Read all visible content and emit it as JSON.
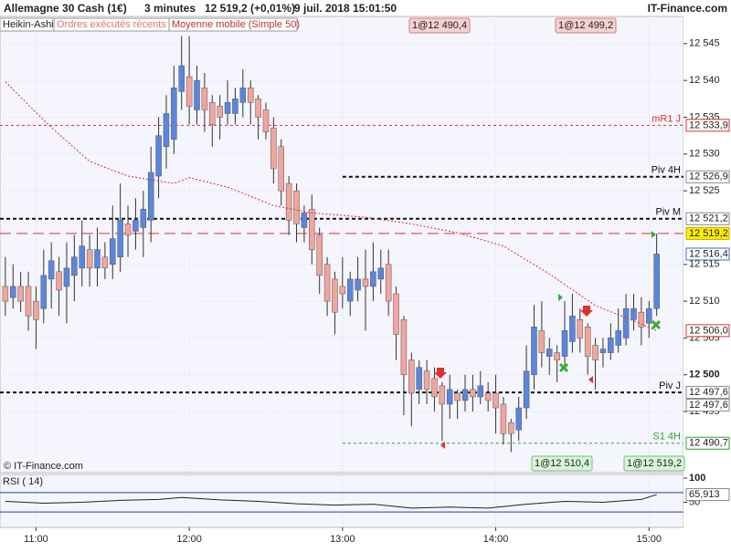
{
  "header": {
    "instrument": "Allemagne 30 Cash (1€)",
    "interval": "3 minutes",
    "quote": "12 519,2 (+0,01%)",
    "datetime": "9 juil. 2018 15:01:50",
    "brand": "IT-Finance.com"
  },
  "tabs": [
    "Heikin-Ashi",
    "Ordres exécutés récents",
    "Moyenne mobile (Simple 50)"
  ],
  "watermark": "© IT-Finance.com",
  "chart_data": {
    "type": "candlestick",
    "colors": {
      "up": "#5b86dc",
      "down": "#f2a59c",
      "ma": "#d03030"
    },
    "ylim": [
      12486.7,
      12548.7
    ],
    "yticks": [
      {
        "value": 12545,
        "label": "12 545"
      },
      {
        "value": 12540,
        "label": "12 540"
      },
      {
        "value": 12535,
        "label": "12 535"
      },
      {
        "value": 12530,
        "label": "12 530"
      },
      {
        "value": 12525,
        "label": "12 525"
      },
      {
        "value": 12515,
        "label": "12 515"
      },
      {
        "value": 12510,
        "label": "12 510"
      },
      {
        "value": 12505,
        "label": "12 505"
      },
      {
        "value": 12500,
        "label": "12 500",
        "bold": true
      },
      {
        "value": 12495,
        "label": "12 495"
      }
    ],
    "xlim": [
      -0.7,
      88.5
    ],
    "xticks": [
      {
        "value": 4,
        "label": "11:00"
      },
      {
        "value": 24,
        "label": "12:00"
      },
      {
        "value": 44,
        "label": "13:00"
      },
      {
        "value": 64,
        "label": "14:00"
      },
      {
        "value": 84,
        "label": "15:00"
      }
    ],
    "candles": [
      [
        12512,
        12516,
        12508,
        12510
      ],
      [
        12510.5,
        12515,
        12509,
        12512
      ],
      [
        12512,
        12514,
        12508.5,
        12510
      ],
      [
        12512,
        12514,
        12506,
        12508
      ],
      [
        12510,
        12512,
        12503.5,
        12507.5
      ],
      [
        12509,
        12517,
        12507,
        12513.5
      ],
      [
        12513,
        12518,
        12509,
        12515.5
      ],
      [
        12514,
        12516,
        12508,
        12511.5
      ],
      [
        12512,
        12518,
        12507,
        12514.5
      ],
      [
        12513.5,
        12519,
        12510,
        12516
      ],
      [
        12514.5,
        12521,
        12512,
        12517.5
      ],
      [
        12517,
        12519,
        12512,
        12514.5
      ],
      [
        12514.5,
        12520,
        12512,
        12517
      ],
      [
        12516,
        12518,
        12513,
        12514.5
      ],
      [
        12515,
        12523,
        12513,
        12518.5
      ],
      [
        12516,
        12526,
        12514,
        12521
      ],
      [
        12520.5,
        12523,
        12516,
        12519
      ],
      [
        12519.5,
        12524,
        12517,
        12521
      ],
      [
        12520,
        12525,
        12516,
        12522.5
      ],
      [
        12521,
        12531,
        12518,
        12527.5
      ],
      [
        12527,
        12535,
        12524,
        12532.5
      ],
      [
        12531,
        12538,
        12528,
        12535.5
      ],
      [
        12532,
        12542,
        12530,
        12539
      ],
      [
        12538.5,
        12546,
        12536,
        12542
      ],
      [
        12540.5,
        12546,
        12534,
        12536.5
      ],
      [
        12536,
        12542,
        12534,
        12540
      ],
      [
        12539,
        12541,
        12533,
        12536
      ],
      [
        12537,
        12538,
        12531,
        12534
      ],
      [
        12536.5,
        12538,
        12532,
        12535
      ],
      [
        12535.5,
        12540,
        12534,
        12537
      ],
      [
        12535.5,
        12539,
        12534,
        12537.5
      ],
      [
        12537,
        12541.5,
        12535,
        12539
      ],
      [
        12539,
        12540,
        12534,
        12537
      ],
      [
        12537.5,
        12538,
        12532,
        12535
      ],
      [
        12536,
        12537,
        12532,
        12533
      ],
      [
        12533.5,
        12535,
        12526,
        12528
      ],
      [
        12531,
        12532,
        12523,
        12525
      ],
      [
        12526,
        12527,
        12519,
        12521
      ],
      [
        12525,
        12526,
        12518,
        12520.5
      ],
      [
        12520,
        12523,
        12518,
        12522
      ],
      [
        12522.5,
        12524.5,
        12515,
        12517
      ],
      [
        12519,
        12520,
        12511,
        12513.5
      ],
      [
        12515,
        12516,
        12508,
        12510
      ],
      [
        12513,
        12514,
        12505.5,
        12508.5
      ],
      [
        12512,
        12516,
        12509,
        12511
      ],
      [
        12510,
        12514,
        12508,
        12513
      ],
      [
        12511.5,
        12516,
        12510,
        12513
      ],
      [
        12513,
        12517,
        12506,
        12512
      ],
      [
        12512,
        12518,
        12510,
        12514
      ],
      [
        12513,
        12517,
        12511,
        12514.5
      ],
      [
        12515,
        12517,
        12508,
        12510
      ],
      [
        12511,
        12512,
        12502,
        12505.5
      ],
      [
        12507.5,
        12508,
        12494.5,
        12500
      ],
      [
        12502,
        12503,
        12493,
        12497.5
      ],
      [
        12498,
        12502,
        12496,
        12501
      ],
      [
        12500.5,
        12502,
        12496,
        12498
      ],
      [
        12499.5,
        12501,
        12495,
        12497
      ],
      [
        12498.5,
        12499,
        12491,
        12496
      ],
      [
        12496,
        12500,
        12494,
        12498
      ],
      [
        12497.5,
        12498,
        12494,
        12496.5
      ],
      [
        12496.5,
        12500,
        12495,
        12498
      ],
      [
        12498,
        12500,
        12495,
        12497
      ],
      [
        12497,
        12500.5,
        12496,
        12498.5
      ],
      [
        12497.5,
        12499,
        12495,
        12496.5
      ],
      [
        12497.5,
        12500,
        12492,
        12495.5
      ],
      [
        12496,
        12497,
        12490.5,
        12492
      ],
      [
        12493.5,
        12494,
        12489.5,
        12492
      ],
      [
        12492.5,
        12497,
        12491,
        12495.5
      ],
      [
        12495.5,
        12504,
        12494,
        12500.5
      ],
      [
        12500,
        12509.5,
        12498,
        12506.5
      ],
      [
        12506,
        12510,
        12501,
        12503
      ],
      [
        12502.5,
        12505,
        12500,
        12503.5
      ],
      [
        12503,
        12504,
        12499,
        12502
      ],
      [
        12502.5,
        12510,
        12501,
        12506
      ],
      [
        12504.5,
        12511,
        12503,
        12508
      ],
      [
        12507.5,
        12509,
        12503,
        12505
      ],
      [
        12506.5,
        12507,
        12500,
        12502.5
      ],
      [
        12504,
        12505,
        12498,
        12502
      ],
      [
        12503,
        12505,
        12501,
        12503.5
      ],
      [
        12503,
        12507,
        12502,
        12505
      ],
      [
        12504,
        12509,
        12503,
        12506
      ],
      [
        12505,
        12511,
        12504,
        12509
      ],
      [
        12507.5,
        12511,
        12506,
        12509
      ],
      [
        12508.5,
        12510.5,
        12504,
        12506.5
      ],
      [
        12507,
        12510,
        12505,
        12509
      ],
      [
        12509,
        12519.2,
        12508,
        12516.4
      ]
    ],
    "ma": {
      "x": [
        0,
        6,
        11,
        16,
        22,
        24,
        29,
        35,
        40,
        47,
        53,
        59,
        65,
        71,
        77,
        83,
        85
      ],
      "values": [
        12539.8,
        12533.6,
        12529,
        12527,
        12526,
        12526.8,
        12525.5,
        12523,
        12522,
        12521.4,
        12520.5,
        12519.3,
        12517.5,
        12513.7,
        12509.4,
        12506.9,
        12506
      ]
    },
    "levels": [
      {
        "name": "mR1 J",
        "value": 12533.9,
        "color": "#e03030",
        "dash": "3 3",
        "start": null
      },
      {
        "name": "Piv 4H",
        "value": 12526.9,
        "color": "#111",
        "dash": "4 3",
        "start": 44
      },
      {
        "name": "Piv M",
        "value": 12521.2,
        "color": "#111",
        "dash": "4 3",
        "start": null
      },
      {
        "name": "Piv J",
        "value": 12497.6,
        "color": "#111",
        "dash": "4 3",
        "start": null
      },
      {
        "name": "S1 4H",
        "value": 12490.7,
        "color": "#30a030",
        "dash": "3 3",
        "start": 44
      },
      {
        "value": 12519.2,
        "color": "#e03030",
        "dash": "12 6",
        "start": null
      }
    ],
    "price_tags": [
      {
        "value": 12533.9,
        "label": "12 533,9",
        "color": "#e03030",
        "bg": "#fff"
      },
      {
        "value": 12526.9,
        "label": "12 526,9",
        "color": "#888",
        "bg": "#fff"
      },
      {
        "value": 12521.2,
        "label": "12 521,2",
        "color": "#888",
        "bg": "#fff"
      },
      {
        "value": 12519.2,
        "label": "12 519,2",
        "color": "#c8a800",
        "bg": "#ffee00"
      },
      {
        "value": 12516.4,
        "label": "12 516,4",
        "color": "#3a6ad8",
        "bg": "#fff"
      },
      {
        "value": 12506.0,
        "label": "12 506,0",
        "color": "#e03030",
        "bg": "#fff"
      },
      {
        "value": 12497.6,
        "label": "12 497,6",
        "color": "#888",
        "bg": "#fff"
      },
      {
        "value": 12497.6,
        "label": "12 497,6",
        "color": "#888",
        "bg": "#fff"
      },
      {
        "value": 12490.7,
        "label": "12 490,7",
        "color": "#30a030",
        "bg": "#fff"
      }
    ],
    "trades": [
      {
        "label": "1@12 490,4",
        "side": "sell"
      },
      {
        "label": "1@12 499,2",
        "side": "sell"
      },
      {
        "label": "1@12 510,4",
        "side": "buy"
      },
      {
        "label": "1@12 519,2",
        "side": "buy"
      }
    ],
    "rsi": {
      "title": "RSI ( 14)",
      "ylim": [
        0,
        100
      ],
      "yticks": [
        100,
        50
      ],
      "levels": [
        70,
        30
      ],
      "color": "#222",
      "level_color": "#2040a0",
      "x": [
        0,
        5,
        10,
        15,
        20,
        23,
        28,
        33,
        38,
        43,
        48,
        53,
        58,
        63,
        68,
        73,
        78,
        83,
        85
      ],
      "values": [
        52,
        48,
        50,
        54,
        56,
        60,
        55,
        52,
        47,
        44,
        46,
        38,
        40,
        38,
        46,
        52,
        50,
        56,
        65.913
      ],
      "value_labels": [
        null,
        null,
        null,
        null,
        null,
        null,
        null,
        null,
        null,
        null,
        null,
        null,
        null,
        null,
        null,
        null,
        null,
        null,
        "65,913"
      ]
    }
  }
}
